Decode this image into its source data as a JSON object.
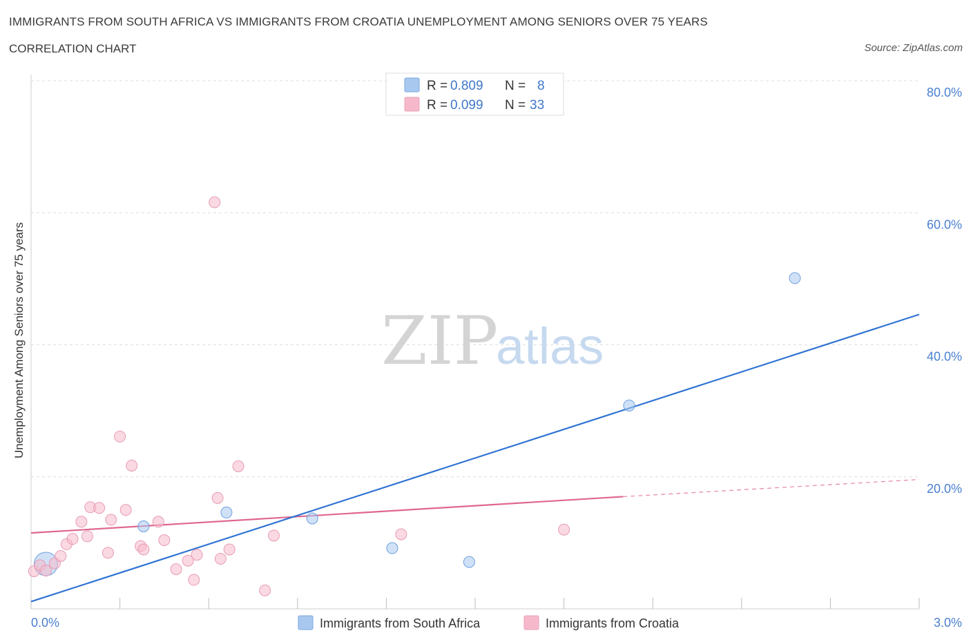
{
  "header": {
    "title": "IMMIGRANTS FROM SOUTH AFRICA VS IMMIGRANTS FROM CROATIA UNEMPLOYMENT AMONG SENIORS OVER 75 YEARS",
    "subtitle": "CORRELATION CHART",
    "source": "Source: ZipAtlas.com"
  },
  "watermark": {
    "zip": "ZIP",
    "atlas": "atlas"
  },
  "legend_box": {
    "rows": [
      {
        "r_label": "R = ",
        "r_value": "0.809",
        "n_label": "N = ",
        "n_value": "8",
        "color": "#a9c8f0"
      },
      {
        "r_label": "R = ",
        "r_value": "0.099",
        "n_label": "N = ",
        "n_value": "33",
        "color": "#f6b9cb"
      }
    ]
  },
  "bottom_legend": [
    {
      "label": "Immigrants from South Africa",
      "color": "#a9c8f0"
    },
    {
      "label": "Immigrants from Croatia",
      "color": "#f6b9cb"
    }
  ],
  "chart_data": {
    "type": "scatter",
    "title": "IMMIGRANTS FROM SOUTH AFRICA VS IMMIGRANTS FROM CROATIA UNEMPLOYMENT AMONG SENIORS OVER 75 YEARS",
    "xlabel": "",
    "ylabel": "Unemployment Among Seniors over 75 years",
    "xlim": [
      0,
      3.0
    ],
    "ylim": [
      0,
      80
    ],
    "x_tick_labels": [
      "0.0%",
      "3.0%"
    ],
    "y_ticks": [
      20,
      40,
      60,
      80
    ],
    "y_tick_labels": [
      "20.0%",
      "40.0%",
      "60.0%",
      "80.0%"
    ],
    "grid": true,
    "series": [
      {
        "name": "Immigrants from South Africa",
        "color": "#a9c8f0",
        "line_color": "#2f73d3",
        "points": [
          {
            "x": 0.05,
            "y": 6.8,
            "big": true
          },
          {
            "x": 0.38,
            "y": 12.5
          },
          {
            "x": 0.66,
            "y": 14.6
          },
          {
            "x": 0.95,
            "y": 13.7
          },
          {
            "x": 1.22,
            "y": 9.2
          },
          {
            "x": 1.48,
            "y": 7.1
          },
          {
            "x": 2.02,
            "y": 30.8
          },
          {
            "x": 2.58,
            "y": 50.1
          }
        ],
        "trend": {
          "x0": 0.0,
          "y0": 1.1,
          "x1": 3.0,
          "y1": 44.6
        }
      },
      {
        "name": "Immigrants from Croatia",
        "color": "#f6b9cb",
        "line_color": "#e0668f",
        "points": [
          {
            "x": 0.01,
            "y": 5.7
          },
          {
            "x": 0.03,
            "y": 6.6
          },
          {
            "x": 0.05,
            "y": 5.8
          },
          {
            "x": 0.08,
            "y": 6.9
          },
          {
            "x": 0.1,
            "y": 8.0
          },
          {
            "x": 0.12,
            "y": 9.8
          },
          {
            "x": 0.14,
            "y": 10.6
          },
          {
            "x": 0.17,
            "y": 13.2
          },
          {
            "x": 0.19,
            "y": 11.0
          },
          {
            "x": 0.2,
            "y": 15.4
          },
          {
            "x": 0.23,
            "y": 15.3
          },
          {
            "x": 0.26,
            "y": 8.5
          },
          {
            "x": 0.27,
            "y": 13.5
          },
          {
            "x": 0.3,
            "y": 26.1
          },
          {
            "x": 0.32,
            "y": 15.0
          },
          {
            "x": 0.34,
            "y": 21.7
          },
          {
            "x": 0.37,
            "y": 9.5
          },
          {
            "x": 0.38,
            "y": 9.0
          },
          {
            "x": 0.43,
            "y": 13.2
          },
          {
            "x": 0.45,
            "y": 10.4
          },
          {
            "x": 0.49,
            "y": 6.0
          },
          {
            "x": 0.53,
            "y": 7.3
          },
          {
            "x": 0.55,
            "y": 4.4
          },
          {
            "x": 0.56,
            "y": 8.2
          },
          {
            "x": 0.62,
            "y": 61.6
          },
          {
            "x": 0.63,
            "y": 16.8
          },
          {
            "x": 0.64,
            "y": 7.6
          },
          {
            "x": 0.67,
            "y": 9.0
          },
          {
            "x": 0.7,
            "y": 21.6
          },
          {
            "x": 0.79,
            "y": 2.8
          },
          {
            "x": 0.82,
            "y": 11.1
          },
          {
            "x": 1.25,
            "y": 11.3
          },
          {
            "x": 1.8,
            "y": 12.0
          }
        ],
        "trend": {
          "x0": 0.0,
          "y0": 11.5,
          "x1": 2.0,
          "y1": 17.0
        },
        "trend_dashed": {
          "x0": 2.0,
          "y0": 17.0,
          "x1": 3.0,
          "y1": 19.6
        }
      }
    ]
  }
}
